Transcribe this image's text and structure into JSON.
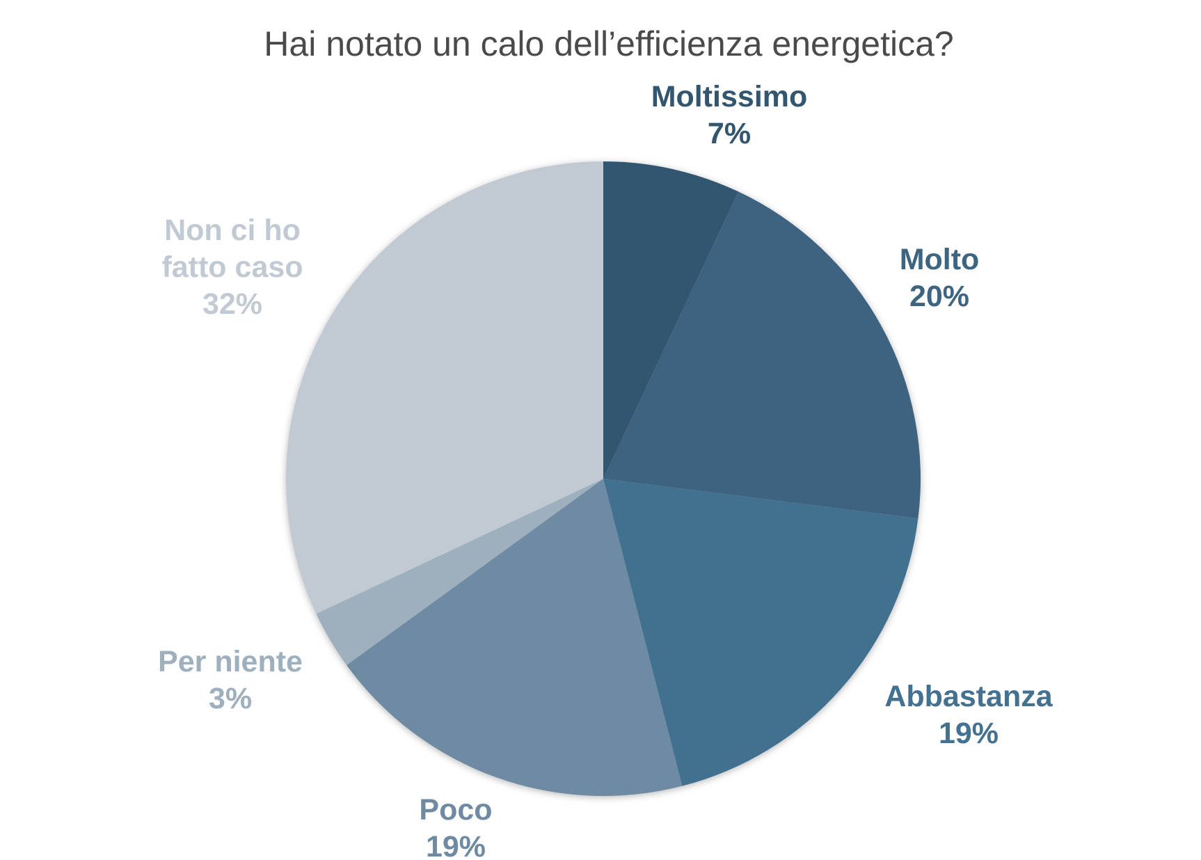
{
  "chart_data": {
    "type": "pie",
    "title": "Hai notato un calo dell’efficienza energetica?",
    "start_angle_deg": 0,
    "direction": "clockwise",
    "slices": [
      {
        "label": "Moltissimo",
        "value": 7,
        "value_label": "7%",
        "color": "#33566f",
        "label_lines": [
          "Moltissimo"
        ]
      },
      {
        "label": "Molto",
        "value": 20,
        "value_label": "20%",
        "color": "#3d6481",
        "label_lines": [
          "Molto"
        ]
      },
      {
        "label": "Abbastanza",
        "value": 19,
        "value_label": "19%",
        "color": "#43718f",
        "label_lines": [
          "Abbastanza"
        ]
      },
      {
        "label": "Poco",
        "value": 19,
        "value_label": "19%",
        "color": "#6e8ba3",
        "label_lines": [
          "Poco"
        ]
      },
      {
        "label": "Per niente",
        "value": 3,
        "value_label": "3%",
        "color": "#9eafbe",
        "label_lines": [
          "Per niente"
        ]
      },
      {
        "label": "Non ci ho fatto caso",
        "value": 32,
        "value_label": "32%",
        "color": "#c1c9d3",
        "label_lines": [
          "Non ci ho",
          "fatto caso"
        ]
      }
    ]
  }
}
